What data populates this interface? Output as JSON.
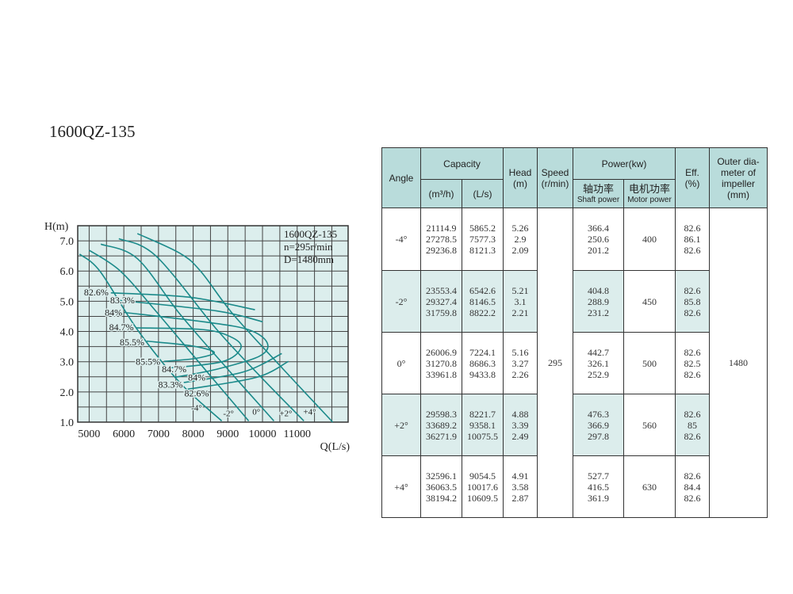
{
  "title": "1600QZ-135",
  "chart_data": {
    "type": "line",
    "title": "",
    "xlabel": "Q(L/s)",
    "ylabel": "H(m)",
    "xlim": [
      4670,
      12470
    ],
    "ylim": [
      1.0,
      7.5
    ],
    "grid": true,
    "x_ticks": [
      5000,
      6000,
      7000,
      8000,
      9000,
      10000,
      11000
    ],
    "x_tick_labels": [
      "5000",
      "6000",
      "7000",
      "8000",
      "9000",
      "10000",
      "11000"
    ],
    "y_ticks": [
      1.0,
      2.0,
      3.0,
      4.0,
      5.0,
      6.0,
      7.0
    ],
    "y_tick_labels": [
      "1.0",
      "2.0",
      "3.0",
      "4.0",
      "5.0",
      "6.0",
      "7.0"
    ],
    "legend_box": {
      "placement": "top-right",
      "lines": [
        "1600QZ-135",
        "n=295r/min",
        "D=1480mm"
      ]
    },
    "curve_color": "#1b8a8a",
    "background_color": "#dceeed",
    "head_curves": [
      {
        "name": "-4°",
        "label_at": [
          8100,
          1.48
        ],
        "points": [
          [
            4725,
            6.56
          ],
          [
            5321,
            5.98
          ],
          [
            6391,
            4.06
          ],
          [
            7615,
            2.31
          ],
          [
            8823,
            1.04
          ]
        ]
      },
      {
        "name": "-2°",
        "label_at": [
          9020,
          1.3
        ],
        "points": [
          [
            5000,
            6.69
          ],
          [
            5900,
            6.0
          ],
          [
            6927,
            4.67
          ],
          [
            8300,
            2.8
          ],
          [
            9602,
            1.04
          ]
        ]
      },
      {
        "name": "0°",
        "label_at": [
          9820,
          1.35
        ],
        "points": [
          [
            5336,
            6.89
          ],
          [
            6391,
            6.41
          ],
          [
            7615,
            4.58
          ],
          [
            9000,
            2.75
          ],
          [
            10329,
            1.04
          ]
        ]
      },
      {
        "name": "+2°",
        "label_at": [
          10670,
          1.3
        ],
        "points": [
          [
            5856,
            7.07
          ],
          [
            6927,
            6.5
          ],
          [
            8685,
            4.06
          ],
          [
            9950,
            2.5
          ],
          [
            11193,
            1.04
          ]
        ]
      },
      {
        "name": "+4°",
        "label_at": [
          11360,
          1.35
        ],
        "points": [
          [
            6391,
            7.24
          ],
          [
            7615,
            6.59
          ],
          [
            8226,
            5.98
          ],
          [
            9144,
            4.58
          ],
          [
            10600,
            2.75
          ],
          [
            12026,
            1.0
          ]
        ]
      }
    ],
    "efficiency_contours": [
      {
        "name": "82.6%",
        "label_at": [
          5206,
          5.3
        ],
        "points": [
          [
            5626,
            5.28
          ],
          [
            7924,
            5.13
          ],
          [
            9782,
            4.72
          ]
        ]
      },
      {
        "name": "83.3%",
        "label_at": [
          5397,
          5.03
        ],
        "points": [
          [
            5780,
            5.04
          ],
          [
            8677,
            4.68
          ],
          [
            10007,
            4.32
          ]
        ]
      },
      {
        "name": "84%",
        "label_at": [
          5702,
          4.63
        ],
        "points": [
          [
            6009,
            4.63
          ],
          [
            8303,
            4.32
          ],
          [
            9594,
            4.06
          ],
          [
            10138,
            3.62
          ],
          [
            9908,
            3.18
          ],
          [
            8677,
            2.75
          ],
          [
            7461,
            2.48
          ]
        ]
      },
      {
        "name": "84.7%",
        "label_at": [
          5931,
          4.14
        ],
        "points": [
          [
            6353,
            4.12
          ],
          [
            8303,
            4.06
          ],
          [
            9142,
            3.79
          ],
          [
            9372,
            3.44
          ],
          [
            8837,
            3.0
          ],
          [
            7307,
            2.79
          ]
        ]
      },
      {
        "name": "85.5%",
        "label_at": [
          6238,
          3.65
        ],
        "points": [
          [
            6658,
            3.68
          ],
          [
            7920,
            3.53
          ],
          [
            8608,
            3.31
          ],
          [
            8073,
            3.11
          ],
          [
            7156,
            3.01
          ]
        ]
      },
      {
        "name": "83.3%",
        "label_at": [
          7346,
          2.24
        ],
        "points": [
          [
            7729,
            2.31
          ],
          [
            9450,
            2.66
          ],
          [
            10557,
            3.27
          ]
        ]
      },
      {
        "name": "82.6%",
        "label_at": [
          7385,
          1.96
        ],
        "points": [
          [
            7844,
            2.09
          ],
          [
            9823,
            2.48
          ],
          [
            10748,
            3.01
          ]
        ]
      }
    ],
    "lower_labels": [
      {
        "name": "85.5%",
        "label_at": [
          6697,
          3.0
        ]
      },
      {
        "name": "84.7%",
        "label_at": [
          6927,
          2.76
        ]
      },
      {
        "name": "84%",
        "label_at": [
          7156,
          2.48
        ]
      }
    ]
  },
  "table": {
    "headers": {
      "angle": "Angle",
      "capacity": "Capacity",
      "cap_m3h": "(m³/h)",
      "cap_ls": "(L/s)",
      "head": "Head",
      "head_unit": "(m)",
      "speed": "Speed",
      "speed_unit": "(r/min)",
      "power": "Power(kw)",
      "shaft_cn": "轴功率",
      "shaft_en": "Shaft power",
      "motor_cn": "电机功率",
      "motor_en": "Motor power",
      "eff": "Eff.",
      "eff_unit": "(%)",
      "outer_1": "Outer dia-",
      "outer_2": "meter of",
      "outer_3": "impeller",
      "outer_4": "(mm)"
    },
    "speed": "295",
    "outer_diameter": "1480",
    "header_color": "#b9dcdb",
    "shade_color": "#dcedec",
    "rows": [
      {
        "angle": "-4°",
        "m3h": [
          "21114.9",
          "27278.5",
          "29236.8"
        ],
        "ls": [
          "5865.2",
          "7577.3",
          "8121.3"
        ],
        "head": [
          "5.26",
          "2.9",
          "2.09"
        ],
        "shaft": [
          "366.4",
          "250.6",
          "201.2"
        ],
        "motor": "400",
        "eff": [
          "82.6",
          "86.1",
          "82.6"
        ]
      },
      {
        "angle": "-2°",
        "m3h": [
          "23553.4",
          "29327.4",
          "31759.8"
        ],
        "ls": [
          "6542.6",
          "8146.5",
          "8822.2"
        ],
        "head": [
          "5.21",
          "3.1",
          "2.21"
        ],
        "shaft": [
          "404.8",
          "288.9",
          "231.2"
        ],
        "motor": "450",
        "eff": [
          "82.6",
          "85.8",
          "82.6"
        ]
      },
      {
        "angle": "0°",
        "m3h": [
          "26006.9",
          "31270.8",
          "33961.8"
        ],
        "ls": [
          "7224.1",
          "8686.3",
          "9433.8"
        ],
        "head": [
          "5.16",
          "3.27",
          "2.26"
        ],
        "shaft": [
          "442.7",
          "326.1",
          "252.9"
        ],
        "motor": "500",
        "eff": [
          "82.6",
          "82.5",
          "82.6"
        ]
      },
      {
        "angle": "+2°",
        "m3h": [
          "29598.3",
          "33689.2",
          "36271.9"
        ],
        "ls": [
          "8221.7",
          "9358.1",
          "10075.5"
        ],
        "head": [
          "4.88",
          "3.39",
          "2.49"
        ],
        "shaft": [
          "476.3",
          "366.9",
          "297.8"
        ],
        "motor": "560",
        "eff": [
          "82.6",
          "85",
          "82.6"
        ]
      },
      {
        "angle": "+4°",
        "m3h": [
          "32596.1",
          "36063.5",
          "38194.2"
        ],
        "ls": [
          "9054.5",
          "10017.6",
          "10609.5"
        ],
        "head": [
          "4.91",
          "3.58",
          "2.87"
        ],
        "shaft": [
          "527.7",
          "416.5",
          "361.9"
        ],
        "motor": "630",
        "eff": [
          "82.6",
          "84.4",
          "82.6"
        ]
      }
    ]
  }
}
